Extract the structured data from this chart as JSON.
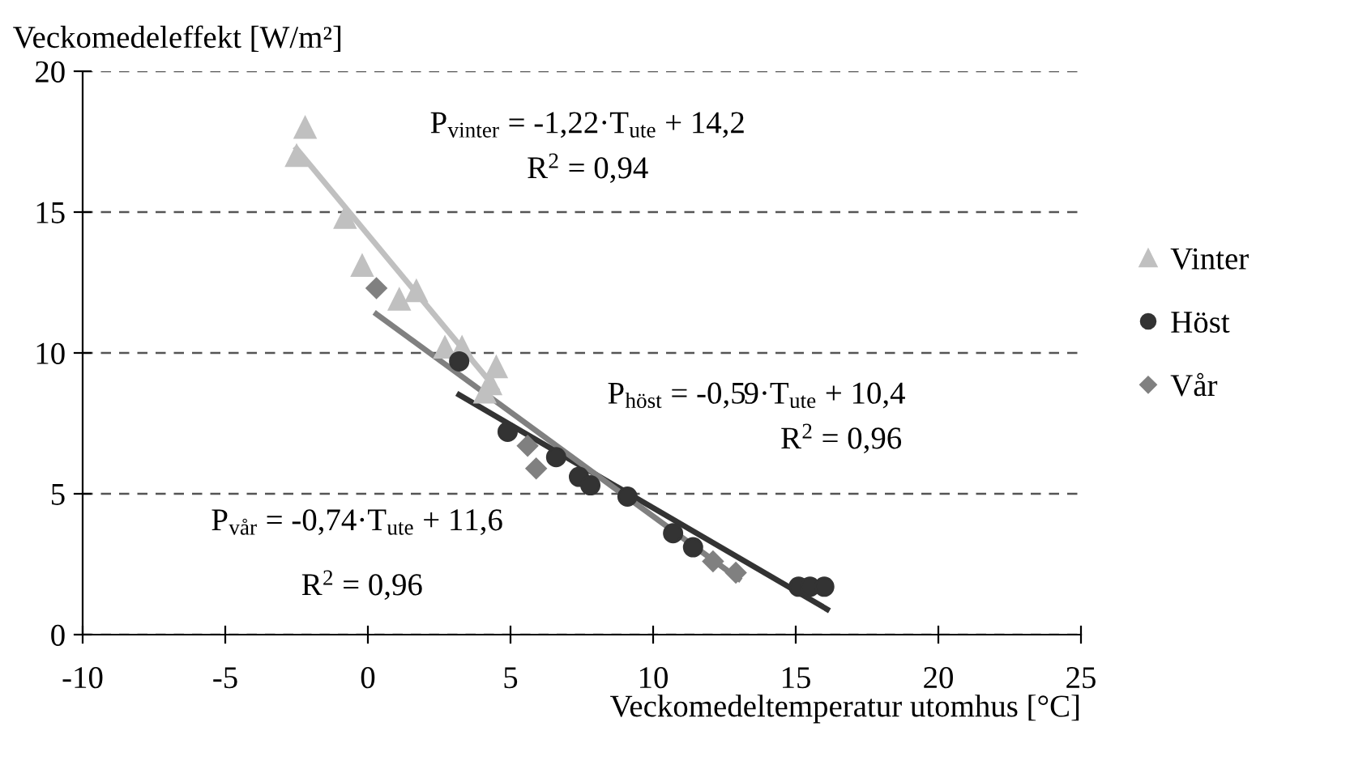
{
  "chart_data": {
    "type": "scatter",
    "ylabel": "Veckomedeleffekt [W/m²]",
    "xlabel": "Veckomedeltemperatur utomhus [°C]",
    "xlim": [
      -10,
      25
    ],
    "xticks": [
      -10,
      -5,
      0,
      5,
      10,
      15,
      20,
      25
    ],
    "ylim": [
      0,
      20
    ],
    "yticks": [
      0,
      5,
      10,
      15,
      20
    ],
    "grid": "y",
    "legend": "right",
    "series": [
      {
        "name": "Vinter",
        "color": "#c0c0c0",
        "marker": "triangle",
        "x": [
          -2.2,
          -2.5,
          -0.8,
          -0.2,
          1.1,
          1.7,
          2.7,
          3.3,
          4.5,
          4.3,
          4.1
        ],
        "values": [
          18.0,
          17.0,
          14.8,
          13.1,
          11.9,
          12.2,
          10.2,
          10.2,
          9.5,
          8.9,
          8.6
        ]
      },
      {
        "name": "Höst",
        "color": "#333333",
        "marker": "circle",
        "x": [
          3.2,
          4.9,
          6.6,
          7.4,
          7.8,
          9.1,
          10.7,
          11.4,
          15.1,
          15.5,
          16.0
        ],
        "values": [
          9.7,
          7.2,
          6.3,
          5.6,
          5.3,
          4.9,
          3.6,
          3.1,
          1.7,
          1.7,
          1.7
        ]
      },
      {
        "name": "Vår",
        "color": "#808080",
        "marker": "diamond",
        "x": [
          0.3,
          5.6,
          5.9,
          12.1,
          12.9
        ],
        "values": [
          12.3,
          6.7,
          5.9,
          2.6,
          2.2
        ]
      },
      {
        "type": "line",
        "color": "#c0c0c0",
        "x": [
          -2.5,
          4.5
        ],
        "values": [
          17.25,
          8.71
        ]
      },
      {
        "type": "line",
        "color": "#333333",
        "x": [
          3.2,
          16.1
        ],
        "values": [
          8.51,
          0.9
        ]
      },
      {
        "type": "line",
        "color": "#808080",
        "x": [
          0.3,
          13.0
        ],
        "values": [
          11.38,
          1.98
        ]
      }
    ],
    "annotations": [
      "P$_{vinter}$ = -1,22·T$_{ute}$ + 14,2",
      "R$^{2}$ = 0,94",
      "P$_{höst}$ = -0,59·T$_{ute}$ + 10,4",
      "R$^{2}$ = 0,96",
      "P$_{vår}$ = -0,74·T$_{ute}$ + 11,6",
      "R$^{2}$ = 0,96"
    ]
  }
}
